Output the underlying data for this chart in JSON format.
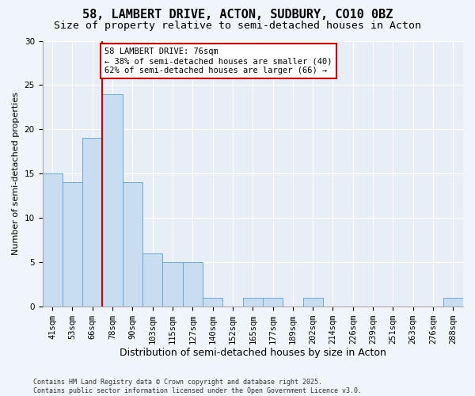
{
  "title1": "58, LAMBERT DRIVE, ACTON, SUDBURY, CO10 0BZ",
  "title2": "Size of property relative to semi-detached houses in Acton",
  "xlabel": "Distribution of semi-detached houses by size in Acton",
  "ylabel": "Number of semi-detached properties",
  "categories": [
    "41sqm",
    "53sqm",
    "66sqm",
    "78sqm",
    "90sqm",
    "103sqm",
    "115sqm",
    "127sqm",
    "140sqm",
    "152sqm",
    "165sqm",
    "177sqm",
    "189sqm",
    "202sqm",
    "214sqm",
    "226sqm",
    "239sqm",
    "251sqm",
    "263sqm",
    "276sqm",
    "288sqm"
  ],
  "values": [
    15,
    14,
    19,
    24,
    14,
    6,
    5,
    5,
    1,
    0,
    1,
    1,
    0,
    1,
    0,
    0,
    0,
    0,
    0,
    0,
    1
  ],
  "bar_color": "#c9ddf0",
  "bar_edge_color": "#6aaad4",
  "highlight_color": "#cc0000",
  "annotation_text": "58 LAMBERT DRIVE: 76sqm\n← 38% of semi-detached houses are smaller (40)\n62% of semi-detached houses are larger (66) →",
  "ylim": [
    0,
    30
  ],
  "yticks": [
    0,
    5,
    10,
    15,
    20,
    25,
    30
  ],
  "fig_bg_color": "#f0f4fb",
  "plot_bg_color": "#e8eef7",
  "footer": "Contains HM Land Registry data © Crown copyright and database right 2025.\nContains public sector information licensed under the Open Government Licence v3.0.",
  "title1_fontsize": 11,
  "title2_fontsize": 9.5,
  "xlabel_fontsize": 9,
  "ylabel_fontsize": 8,
  "tick_fontsize": 7.5,
  "footer_fontsize": 6,
  "annot_fontsize": 7.5
}
